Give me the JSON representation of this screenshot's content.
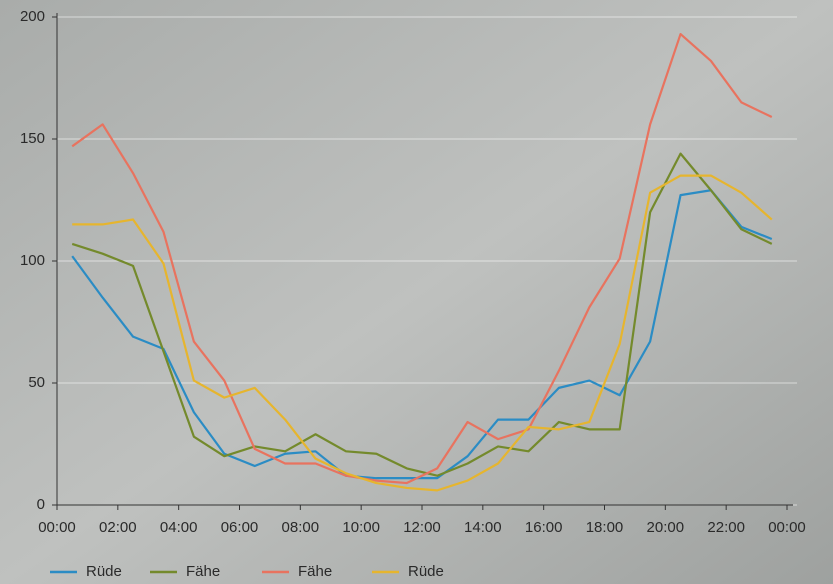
{
  "chart_data": {
    "type": "line",
    "x": [
      0.5,
      1.5,
      2.5,
      3.5,
      4.5,
      5.5,
      6.5,
      7.5,
      8.5,
      9.5,
      10.5,
      11.5,
      12.5,
      13.5,
      14.5,
      15.5,
      16.5,
      17.5,
      18.5,
      19.5,
      20.5,
      21.5,
      22.5,
      23.5
    ],
    "xlim": [
      0,
      24
    ],
    "xticks": [
      {
        "value": 0,
        "label": "00:00"
      },
      {
        "value": 2,
        "label": "02:00"
      },
      {
        "value": 4,
        "label": "04:00"
      },
      {
        "value": 6,
        "label": "06:00"
      },
      {
        "value": 8,
        "label": "08:00"
      },
      {
        "value": 10,
        "label": "10:00"
      },
      {
        "value": 12,
        "label": "12:00"
      },
      {
        "value": 14,
        "label": "14:00"
      },
      {
        "value": 16,
        "label": "16:00"
      },
      {
        "value": 18,
        "label": "18:00"
      },
      {
        "value": 20,
        "label": "20:00"
      },
      {
        "value": 22,
        "label": "22:00"
      },
      {
        "value": 24,
        "label": "00:00"
      }
    ],
    "ylim": [
      0,
      200
    ],
    "yticks": [
      0,
      50,
      100,
      150,
      200
    ],
    "grid": true,
    "series": [
      {
        "name": "Rüde",
        "color": "#2b8cc4",
        "values": [
          102,
          85,
          69,
          64,
          38,
          21,
          16,
          21,
          22,
          12,
          11,
          11,
          11,
          20,
          35,
          35,
          48,
          51,
          45,
          67,
          127,
          129,
          114,
          109
        ]
      },
      {
        "name": "Fähe",
        "color": "#748a2c",
        "values": [
          107,
          103,
          98,
          63,
          28,
          20,
          24,
          22,
          29,
          22,
          21,
          15,
          12,
          17,
          24,
          22,
          34,
          31,
          31,
          120,
          144,
          129,
          113,
          107
        ]
      },
      {
        "name": "Fähe",
        "color": "#e8735f",
        "values": [
          147,
          156,
          136,
          112,
          67,
          51,
          23,
          17,
          17,
          12,
          10,
          9,
          15,
          34,
          27,
          31,
          55,
          81,
          101,
          156,
          193,
          182,
          165,
          159
        ]
      },
      {
        "name": "Rüde",
        "color": "#e6b52e",
        "values": [
          115,
          115,
          117,
          99,
          51,
          44,
          48,
          35,
          19,
          13,
          9,
          7,
          6,
          10,
          17,
          32,
          31,
          34,
          66,
          128,
          135,
          135,
          128,
          117
        ]
      }
    ]
  }
}
